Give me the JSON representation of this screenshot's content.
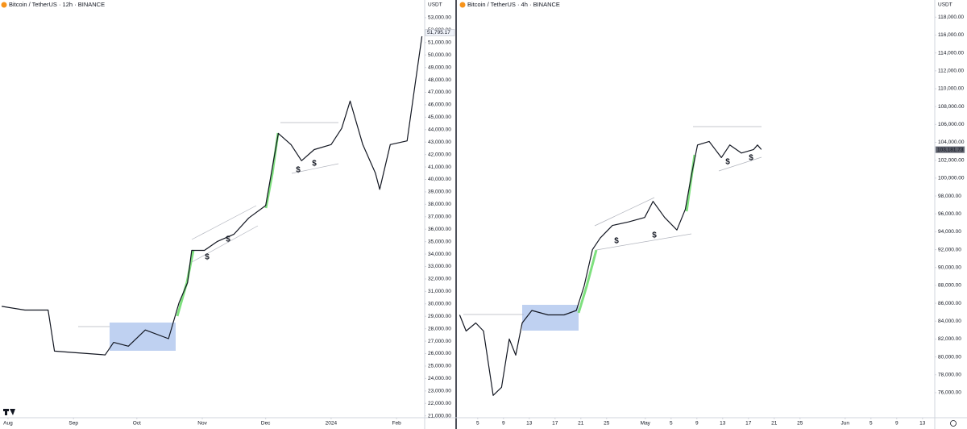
{
  "chart_data": [
    {
      "type": "line",
      "title": "Bitcoin / TetherUS · 12h · BINANCE",
      "currency": "USDT",
      "color": "#131722",
      "x": [
        -3,
        8,
        19,
        22,
        30,
        38,
        46,
        50,
        57,
        65,
        76,
        81,
        85,
        87,
        93,
        99,
        107,
        114,
        122,
        128,
        134,
        139,
        145,
        153,
        158,
        162,
        168,
        174,
        176,
        181,
        189,
        193,
        196
      ],
      "values": [
        29800,
        29500,
        29500,
        26200,
        26100,
        26000,
        25900,
        26900,
        26600,
        27900,
        27200,
        30100,
        31700,
        34300,
        34300,
        35000,
        35600,
        36900,
        37900,
        43700,
        42800,
        41500,
        42400,
        42800,
        44100,
        46300,
        42800,
        40500,
        39200,
        42800,
        43100,
        47900,
        51500
      ],
      "xlim": [
        -3.8,
        197.3
      ],
      "ylim": [
        20850,
        53900
      ],
      "grid": false,
      "xticks": [
        {
          "value": 0,
          "label": "Aug"
        },
        {
          "value": 31,
          "label": "Sep"
        },
        {
          "value": 61,
          "label": "Oct"
        },
        {
          "value": 92,
          "label": "Nov"
        },
        {
          "value": 122,
          "label": "Dec"
        },
        {
          "value": 153,
          "label": "2024"
        },
        {
          "value": 184,
          "label": "Feb"
        }
      ],
      "yticks": [
        {
          "value": 21000,
          "label": "21,000.00"
        },
        {
          "value": 22000,
          "label": "22,000.00"
        },
        {
          "value": 23000,
          "label": "23,000.00"
        },
        {
          "value": 24000,
          "label": "24,000.00"
        },
        {
          "value": 25000,
          "label": "25,000.00"
        },
        {
          "value": 26000,
          "label": "26,000.00"
        },
        {
          "value": 27000,
          "label": "27,000.00"
        },
        {
          "value": 28000,
          "label": "28,000.00"
        },
        {
          "value": 29000,
          "label": "29,000.00"
        },
        {
          "value": 30000,
          "label": "30,000.00"
        },
        {
          "value": 31000,
          "label": "31,000.00"
        },
        {
          "value": 32000,
          "label": "32,000.00"
        },
        {
          "value": 33000,
          "label": "33,000.00"
        },
        {
          "value": 34000,
          "label": "34,000.00"
        },
        {
          "value": 35000,
          "label": "35,000.00"
        },
        {
          "value": 36000,
          "label": "36,000.00"
        },
        {
          "value": 37000,
          "label": "37,000.00"
        },
        {
          "value": 38000,
          "label": "38,000.00"
        },
        {
          "value": 39000,
          "label": "39,000.00"
        },
        {
          "value": 40000,
          "label": "40,000.00"
        },
        {
          "value": 41000,
          "label": "41,000.00"
        },
        {
          "value": 42000,
          "label": "42,000.00"
        },
        {
          "value": 43000,
          "label": "43,000.00"
        },
        {
          "value": 44000,
          "label": "44,000.00"
        },
        {
          "value": 45000,
          "label": "45,000.00"
        },
        {
          "value": 46000,
          "label": "46,000.00"
        },
        {
          "value": 47000,
          "label": "47,000.00"
        },
        {
          "value": 48000,
          "label": "48,000.00"
        },
        {
          "value": 49000,
          "label": "49,000.00"
        },
        {
          "value": 50000,
          "label": "50,000.00"
        },
        {
          "value": 51000,
          "label": "51,000.00"
        },
        {
          "value": 52000,
          "label": "52,000.00"
        },
        {
          "value": 53000,
          "label": "53,000.00"
        }
      ],
      "last_price": {
        "value": 51795.17,
        "label": "51,795.17"
      },
      "annotations": [
        "$",
        "$",
        "$",
        "$"
      ]
    },
    {
      "type": "line",
      "title": "Bitcoin / TetherUS · 4h · BINANCE",
      "currency": "USDT",
      "color": "#131722",
      "x": [
        2.2,
        3.2,
        4.7,
        5.9,
        7.4,
        8.7,
        9.9,
        10.9,
        11.9,
        13.4,
        15.9,
        18.4,
        20.3,
        21.5,
        22.8,
        24,
        25.9,
        28.4,
        30.9,
        32.2,
        34,
        35.9,
        37.2,
        38.2,
        39.1,
        40.9,
        42.8,
        44.1,
        45.9,
        47.8,
        48.4,
        49
      ],
      "values": [
        84700,
        82900,
        83800,
        82900,
        75700,
        76600,
        82000,
        80200,
        83800,
        85200,
        84700,
        84700,
        85200,
        87900,
        92000,
        93300,
        94700,
        95100,
        95600,
        97400,
        95600,
        94200,
        96500,
        100500,
        103700,
        104100,
        102300,
        103700,
        102800,
        103200,
        103700,
        103200
      ],
      "xlim": [
        1.9,
        75.9
      ],
      "ylim": [
        73200,
        119200
      ],
      "grid": false,
      "xticks": [
        5,
        9,
        13,
        17,
        21,
        25,
        {
          "value": 31,
          "label": "May"
        },
        {
          "value": 35,
          "label": "5"
        },
        {
          "value": 39,
          "label": "9"
        },
        {
          "value": 43,
          "label": "13"
        },
        {
          "value": 47,
          "label": "17"
        },
        {
          "value": 51,
          "label": "21"
        },
        {
          "value": 55,
          "label": "25"
        },
        {
          "value": 62,
          "label": "Jun"
        },
        {
          "value": 66,
          "label": "5"
        },
        {
          "value": 70,
          "label": "9"
        },
        {
          "value": 74,
          "label": "13"
        }
      ],
      "yticks": [
        {
          "value": 76000,
          "label": "76,000.00"
        },
        {
          "value": 78000,
          "label": "78,000.00"
        },
        {
          "value": 80000,
          "label": "80,000.00"
        },
        {
          "value": 82000,
          "label": "82,000.00"
        },
        {
          "value": 84000,
          "label": "84,000.00"
        },
        {
          "value": 86000,
          "label": "86,000.00"
        },
        {
          "value": 88000,
          "label": "88,000.00"
        },
        {
          "value": 90000,
          "label": "90,000.00"
        },
        {
          "value": 92000,
          "label": "92,000.00"
        },
        {
          "value": 94000,
          "label": "94,000.00"
        },
        {
          "value": 96000,
          "label": "96,000.00"
        },
        {
          "value": 98000,
          "label": "98,000.00"
        },
        {
          "value": 100000,
          "label": "100,000.00"
        },
        {
          "value": 102000,
          "label": "102,000.00"
        },
        {
          "value": 104000,
          "label": "104,000.00"
        },
        {
          "value": 106000,
          "label": "106,000.00"
        },
        {
          "value": 108000,
          "label": "108,000.00"
        },
        {
          "value": 110000,
          "label": "110,000.00"
        },
        {
          "value": 112000,
          "label": "112,000.00"
        },
        {
          "value": 114000,
          "label": "114,000.00"
        },
        {
          "value": 116000,
          "label": "116,000.00"
        },
        {
          "value": 118000,
          "label": "118,000.00"
        }
      ],
      "last_price": {
        "value": 103181.73,
        "label": "103,181.73"
      },
      "annotations": [
        "$",
        "$",
        "$",
        "$"
      ]
    }
  ]
}
